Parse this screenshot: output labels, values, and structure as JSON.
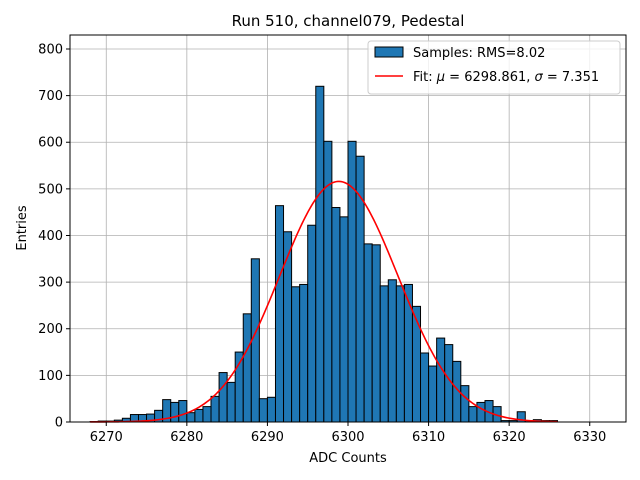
{
  "chart_data": {
    "type": "bar",
    "title": "Run 510, channel079, Pedestal",
    "xlabel": "ADC Counts",
    "ylabel": "Entries",
    "xlim": [
      6265.5,
      6334.5
    ],
    "ylim": [
      0,
      830
    ],
    "xticks": [
      6270,
      6280,
      6290,
      6300,
      6310,
      6320,
      6330
    ],
    "yticks": [
      0,
      100,
      200,
      300,
      400,
      500,
      600,
      700,
      800
    ],
    "grid": true,
    "legend_position": "top-right",
    "histogram": {
      "name": "Samples: RMS=8.02",
      "color": "#1f77b4",
      "bin_width": 1,
      "bin_left_edges": [
        6268,
        6269,
        6270,
        6271,
        6272,
        6273,
        6274,
        6275,
        6276,
        6277,
        6278,
        6279,
        6280,
        6281,
        6282,
        6283,
        6284,
        6285,
        6286,
        6287,
        6288,
        6289,
        6290,
        6291,
        6292,
        6293,
        6294,
        6295,
        6296,
        6297,
        6298,
        6299,
        6300,
        6301,
        6302,
        6303,
        6304,
        6305,
        6306,
        6307,
        6308,
        6309,
        6310,
        6311,
        6312,
        6313,
        6314,
        6315,
        6316,
        6317,
        6318,
        6319,
        6320,
        6321,
        6322,
        6323,
        6324,
        6325
      ],
      "counts": [
        1,
        2,
        2,
        4,
        8,
        16,
        16,
        17,
        25,
        48,
        42,
        46,
        20,
        27,
        33,
        55,
        106,
        85,
        150,
        232,
        350,
        50,
        53,
        464,
        408,
        290,
        295,
        422,
        720,
        602,
        460,
        440,
        602,
        570,
        382,
        380,
        292,
        305,
        292,
        295,
        248,
        148,
        120,
        180,
        166,
        130,
        78,
        33,
        42,
        46,
        33,
        3,
        3,
        22,
        3,
        5,
        3,
        3
      ]
    },
    "fit": {
      "name": "Fit: μ = 6298.861, σ = 7.351",
      "legend_prefix": "Fit: ",
      "legend_mu": "μ",
      "legend_mu_value": " = 6298.861, ",
      "legend_sigma": "σ",
      "legend_sigma_value": " = 7.351",
      "color": "#ff0000",
      "mu": 6298.861,
      "sigma": 7.351,
      "amplitude": 516,
      "x_range": [
        6268,
        6326
      ]
    }
  }
}
